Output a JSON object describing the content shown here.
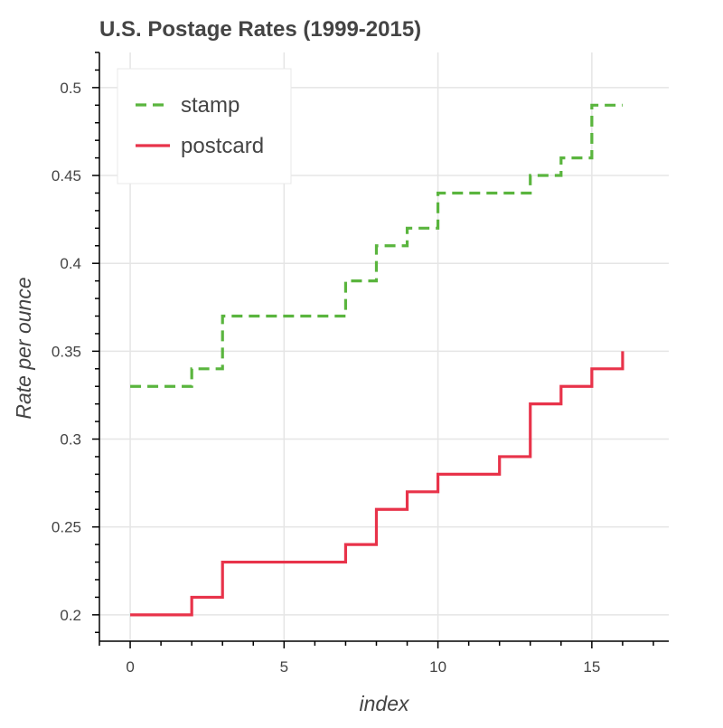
{
  "chart_data": {
    "type": "line",
    "step": true,
    "title": "U.S. Postage Rates (1999-2015)",
    "xlabel": "index",
    "ylabel": "Rate per ounce",
    "xlim": [
      -1,
      17.5
    ],
    "ylim": [
      0.185,
      0.52
    ],
    "x_ticks": [
      0,
      5,
      10,
      15
    ],
    "x_tick_labels": [
      "0",
      "5",
      "10",
      "15"
    ],
    "y_ticks": [
      0.2,
      0.25,
      0.3,
      0.35,
      0.4,
      0.45,
      0.5
    ],
    "y_tick_labels": [
      "0.2",
      "0.25",
      "0.3",
      "0.35",
      "0.4",
      "0.45",
      "0.5"
    ],
    "grid": true,
    "legend_position": "top-left",
    "x": [
      0,
      1,
      2,
      3,
      4,
      5,
      6,
      7,
      8,
      9,
      10,
      11,
      12,
      13,
      14,
      15,
      16
    ],
    "series": [
      {
        "name": "stamp",
        "color": "#5ab53e",
        "dash": "dashed",
        "values": [
          0.33,
          0.33,
          0.34,
          0.37,
          0.37,
          0.37,
          0.37,
          0.39,
          0.41,
          0.42,
          0.44,
          0.44,
          0.44,
          0.45,
          0.46,
          0.49,
          0.49
        ]
      },
      {
        "name": "postcard",
        "color": "#e8334a",
        "dash": "solid",
        "values": [
          0.2,
          0.2,
          0.21,
          0.23,
          0.23,
          0.23,
          0.23,
          0.24,
          0.26,
          0.27,
          0.28,
          0.28,
          0.29,
          0.32,
          0.33,
          0.34,
          0.35
        ]
      }
    ]
  }
}
